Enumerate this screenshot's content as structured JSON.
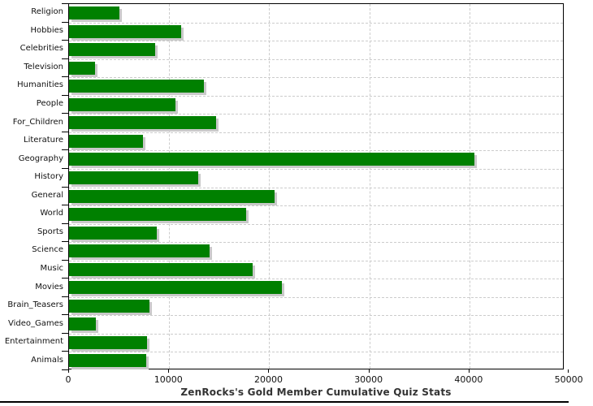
{
  "title": "ZenRocks's Gold Member Cumulative Quiz Stats",
  "chart_data": {
    "type": "bar",
    "orientation": "horizontal",
    "title": "ZenRocks's Gold Member Cumulative Quiz Stats",
    "categories": [
      "Religion",
      "Hobbies",
      "Celebrities",
      "Television",
      "Humanities",
      "People",
      "For_Children",
      "Literature",
      "Geography",
      "History",
      "General",
      "World",
      "Sports",
      "Science",
      "Music",
      "Movies",
      "Brain_Teasers",
      "Video_Games",
      "Entertainment",
      "Animals"
    ],
    "values": [
      5000,
      11200,
      8600,
      2600,
      13500,
      10600,
      14700,
      7400,
      40500,
      12900,
      20500,
      17700,
      8800,
      14000,
      18300,
      21300,
      8000,
      2650,
      7800,
      7700
    ],
    "xlabel": "",
    "ylabel": "",
    "xlim": [
      0,
      50000
    ],
    "xticks": [
      0,
      10000,
      20000,
      30000,
      40000,
      50000
    ],
    "xtick_labels": [
      "0",
      "10000",
      "20000",
      "30000",
      "40000",
      "50000"
    ],
    "grid": "dashed",
    "legend": "none",
    "bar_color": "#008000",
    "shadow_color": "#c9c9c9",
    "grid_color": "#cccccc",
    "frame_color": "#000000",
    "background": "#ffffff"
  }
}
